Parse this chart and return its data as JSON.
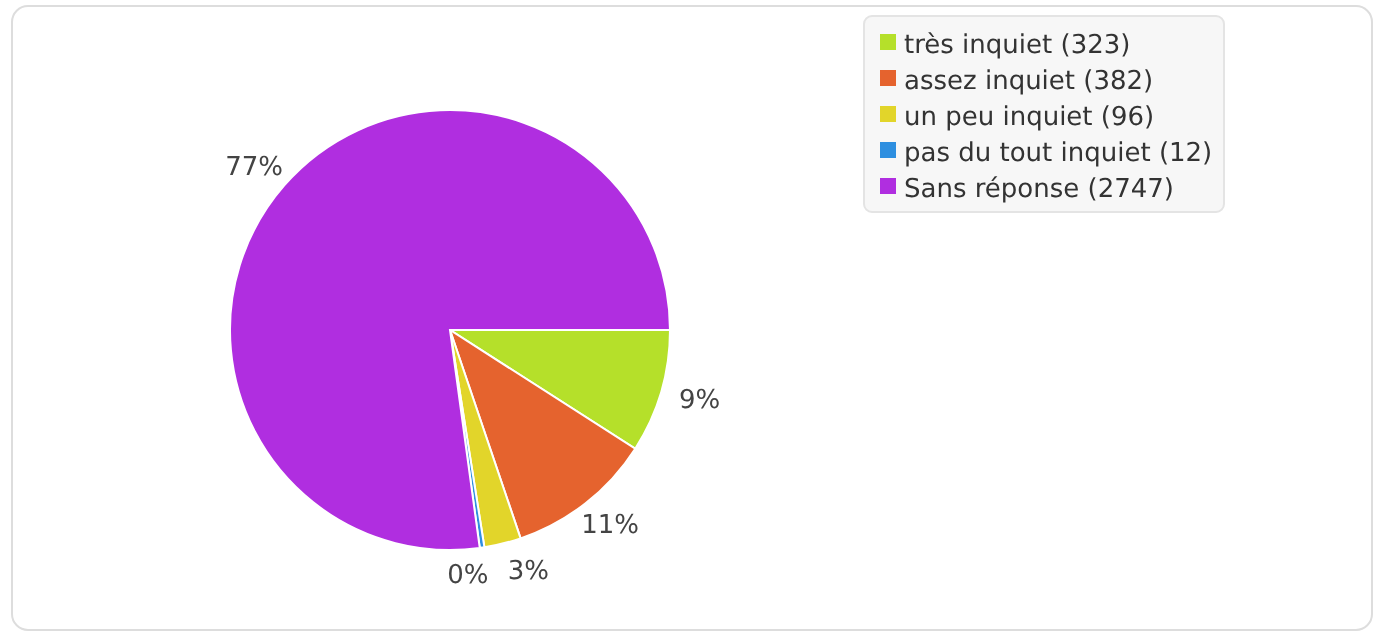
{
  "chart_data": {
    "type": "pie",
    "categories": [
      "très inquiet (323)",
      "assez inquiet (382)",
      "un peu inquiet (96)",
      "pas du tout inquiet (12)",
      "Sans réponse (2747)"
    ],
    "values": [
      9.07,
      10.73,
      2.7,
      0.34,
      77.16
    ],
    "colors": [
      "#b5e02a",
      "#e5632e",
      "#e2d52a",
      "#2e8fe0",
      "#b02ee0"
    ],
    "value_labels": [
      "9%",
      "11%",
      "3%",
      "0%",
      "77%"
    ],
    "legend": "top right"
  }
}
